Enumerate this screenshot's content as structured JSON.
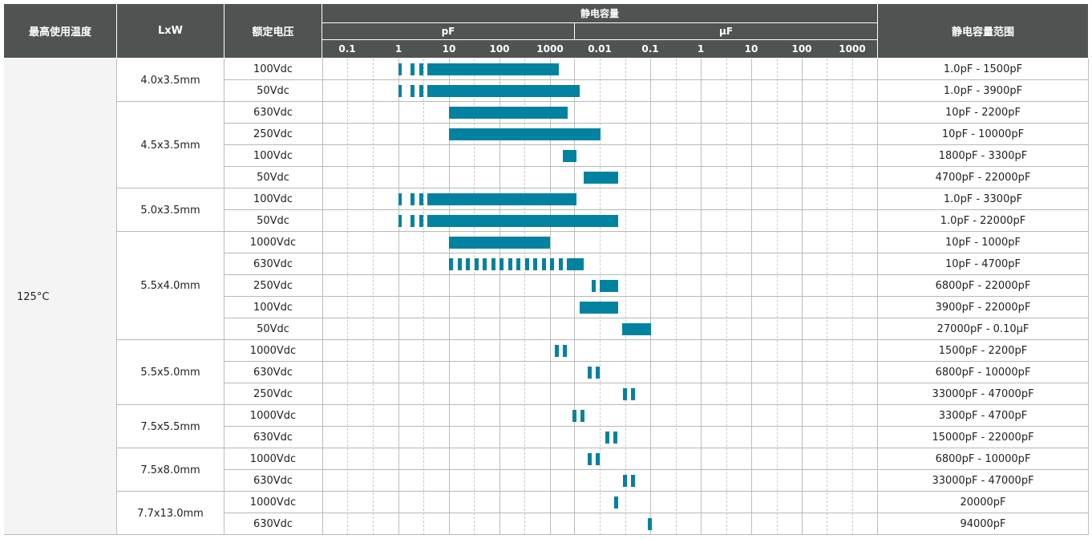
{
  "header": {
    "temp": "最高使用温度",
    "size": "LxW",
    "voltage": "额定电压",
    "capacitance": "静电容量",
    "range": "静电容量范围",
    "pf_label": "pF",
    "uf_label": "µF",
    "ticks": [
      "0.1",
      "1",
      "10",
      "100",
      "1000",
      "0.01",
      "0.1",
      "1",
      "10",
      "100",
      "1000"
    ]
  },
  "temperature": "125°C",
  "colors": {
    "header_bg": "#4f5352",
    "bar": "#0082a0",
    "temp_bg": "#f4f4f4"
  },
  "groups": [
    {
      "size": "4.0x3.5mm",
      "rows": [
        {
          "voltage": "100Vdc",
          "range": "1.0pF - 1500pF",
          "min_pf": 1.0,
          "max_pf": 1500,
          "style": "dashed-solid"
        },
        {
          "voltage": "50Vdc",
          "range": "1.0pF - 3900pF",
          "min_pf": 1.0,
          "max_pf": 3900,
          "style": "dashed-solid"
        }
      ]
    },
    {
      "size": "4.5x3.5mm",
      "rows": [
        {
          "voltage": "630Vdc",
          "range": "10pF - 2200pF",
          "min_pf": 10,
          "max_pf": 2200,
          "style": "solid"
        },
        {
          "voltage": "250Vdc",
          "range": "10pF - 10000pF",
          "min_pf": 10,
          "max_pf": 10000,
          "style": "solid"
        },
        {
          "voltage": "100Vdc",
          "range": "1800pF - 3300pF",
          "min_pf": 1800,
          "max_pf": 3300,
          "style": "solid"
        },
        {
          "voltage": "50Vdc",
          "range": "4700pF - 22000pF",
          "min_pf": 4700,
          "max_pf": 22000,
          "style": "solid"
        }
      ]
    },
    {
      "size": "5.0x3.5mm",
      "rows": [
        {
          "voltage": "100Vdc",
          "range": "1.0pF - 3300pF",
          "min_pf": 1.0,
          "max_pf": 3300,
          "style": "dashed-solid"
        },
        {
          "voltage": "50Vdc",
          "range": "1.0pF - 22000pF",
          "min_pf": 1.0,
          "max_pf": 22000,
          "style": "dashed-solid"
        }
      ]
    },
    {
      "size": "5.5x4.0mm",
      "rows": [
        {
          "voltage": "1000Vdc",
          "range": "10pF - 1000pF",
          "min_pf": 10,
          "max_pf": 1000,
          "style": "solid"
        },
        {
          "voltage": "630Vdc",
          "range": "10pF - 4700pF",
          "min_pf": 10,
          "max_pf": 4700,
          "style": "long-dashed"
        },
        {
          "voltage": "250Vdc",
          "range": "6800pF - 22000pF",
          "min_pf": 6800,
          "max_pf": 22000,
          "style": "tick-solid"
        },
        {
          "voltage": "100Vdc",
          "range": "3900pF - 22000pF",
          "min_pf": 3900,
          "max_pf": 22000,
          "style": "solid"
        },
        {
          "voltage": "50Vdc",
          "range": "27000pF - 0.10µF",
          "min_pf": 27000,
          "max_pf": 100000,
          "style": "solid"
        }
      ]
    },
    {
      "size": "5.5x5.0mm",
      "rows": [
        {
          "voltage": "1000Vdc",
          "range": "1500pF - 2200pF",
          "min_pf": 1500,
          "max_pf": 2200,
          "style": "pair"
        },
        {
          "voltage": "630Vdc",
          "range": "6800pF - 10000pF",
          "min_pf": 6800,
          "max_pf": 10000,
          "style": "pair"
        },
        {
          "voltage": "250Vdc",
          "range": "33000pF - 47000pF",
          "min_pf": 33000,
          "max_pf": 47000,
          "style": "pair"
        }
      ]
    },
    {
      "size": "7.5x5.5mm",
      "rows": [
        {
          "voltage": "1000Vdc",
          "range": "3300pF - 4700pF",
          "min_pf": 3300,
          "max_pf": 4700,
          "style": "pair"
        },
        {
          "voltage": "630Vdc",
          "range": "15000pF - 22000pF",
          "min_pf": 15000,
          "max_pf": 22000,
          "style": "pair"
        }
      ]
    },
    {
      "size": "7.5x8.0mm",
      "rows": [
        {
          "voltage": "1000Vdc",
          "range": "6800pF - 10000pF",
          "min_pf": 6800,
          "max_pf": 10000,
          "style": "pair"
        },
        {
          "voltage": "630Vdc",
          "range": "33000pF - 47000pF",
          "min_pf": 33000,
          "max_pf": 47000,
          "style": "pair"
        }
      ]
    },
    {
      "size": "7.7x13.0mm",
      "rows": [
        {
          "voltage": "1000Vdc",
          "range": "20000pF",
          "min_pf": 20000,
          "max_pf": 20000,
          "style": "single"
        },
        {
          "voltage": "630Vdc",
          "range": "94000pF",
          "min_pf": 94000,
          "max_pf": 94000,
          "style": "single"
        }
      ]
    }
  ]
}
